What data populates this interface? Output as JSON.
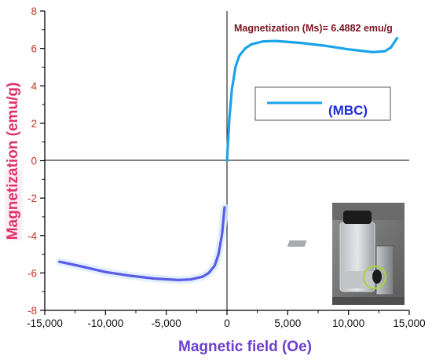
{
  "chart_data": {
    "type": "line",
    "xlabel": "Magnetic field (Oe)",
    "ylabel": "Magnetization (emu/g)",
    "xlim": [
      -15000,
      15000
    ],
    "ylim": [
      -8,
      8
    ],
    "x_ticks": [
      -15000,
      -10000,
      -5000,
      0,
      5000,
      10000,
      15000
    ],
    "x_tick_labels": [
      "-15,000",
      "-10,000",
      "-5,000",
      "0",
      "5,000",
      "10,000",
      "15,000"
    ],
    "y_ticks": [
      -8,
      -6,
      -4,
      -2,
      0,
      2,
      4,
      6,
      8
    ],
    "y_tick_labels": [
      "-8",
      "-6",
      "-4",
      "-2",
      "0",
      "2",
      "4",
      "6",
      "8"
    ],
    "annotation": "Magnetization (Ms)= 6.4882 emu/g",
    "grid": false,
    "zero_lines": true,
    "legend_position": "upper-right",
    "series": [
      {
        "name": "(MBC)",
        "color": "#1aa3e8",
        "lower_branch_color": "#5b5be6",
        "x": [
          -13800,
          -12000,
          -10000,
          -8000,
          -6000,
          -4000,
          -3000,
          -2000,
          -1500,
          -1000,
          -700,
          -400,
          -200,
          0,
          200,
          400,
          700,
          1000,
          1500,
          2000,
          3000,
          4000,
          6000,
          8000,
          10000,
          12000,
          13000,
          13500,
          14000
        ],
        "y": [
          -5.4,
          -5.65,
          -5.95,
          -6.15,
          -6.3,
          -6.38,
          -6.35,
          -6.2,
          -6.0,
          -5.6,
          -5.0,
          -3.9,
          -2.5,
          0.0,
          2.3,
          3.8,
          5.0,
          5.6,
          6.0,
          6.22,
          6.38,
          6.4,
          6.3,
          6.15,
          5.95,
          5.8,
          5.85,
          6.05,
          6.55
        ]
      }
    ],
    "inset": "photo-of-vial-next-to-magnet"
  },
  "colors": {
    "axis": "#000000",
    "ylabel": "#e0306a",
    "ytick": "#c23b2b",
    "xlabel": "#6b3fd0",
    "annotation": "#7a1520",
    "legend_text": "#1c2bd6",
    "curve_upper": "#1aa3e8",
    "curve_lower": "#5b5be6"
  }
}
